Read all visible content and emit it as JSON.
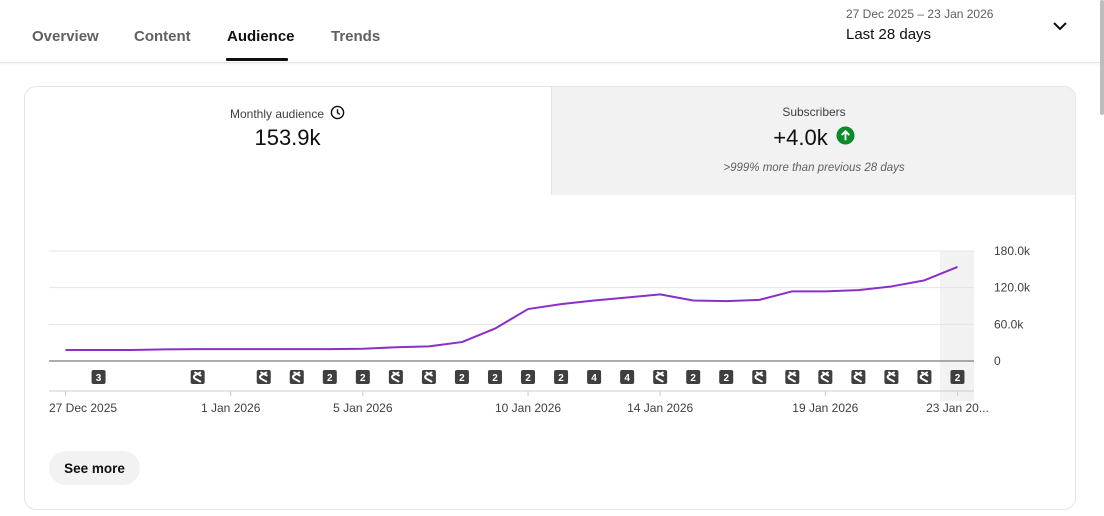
{
  "tabs": [
    {
      "label": "Overview",
      "active": false
    },
    {
      "label": "Content",
      "active": false
    },
    {
      "label": "Audience",
      "active": true
    },
    {
      "label": "Trends",
      "active": false
    }
  ],
  "date_range": {
    "range": "27 Dec 2025 – 23 Jan 2026",
    "period": "Last 28 days",
    "dropdown_icon": "chevron-down-icon"
  },
  "metrics": {
    "monthly_audience": {
      "label": "Monthly audience",
      "value": "153.9k",
      "icon": "clock-icon"
    },
    "subscribers": {
      "label": "Subscribers",
      "value": "+4.0k",
      "icon": "arrow-up-circle-icon",
      "change": ">999% more than previous 28 days",
      "accent": "#0b8a2a"
    }
  },
  "chart_data": {
    "type": "line",
    "x": [
      "27 Dec",
      "28 Dec",
      "29 Dec",
      "30 Dec",
      "31 Dec",
      "1 Jan",
      "2 Jan",
      "3 Jan",
      "4 Jan",
      "5 Jan",
      "6 Jan",
      "7 Jan",
      "8 Jan",
      "9 Jan",
      "10 Jan",
      "11 Jan",
      "12 Jan",
      "13 Jan",
      "14 Jan",
      "15 Jan",
      "16 Jan",
      "17 Jan",
      "18 Jan",
      "19 Jan",
      "20 Jan",
      "21 Jan",
      "22 Jan",
      "23 Jan"
    ],
    "series": [
      {
        "values": [
          18000,
          18000,
          18000,
          19000,
          19500,
          19500,
          19500,
          19500,
          19500,
          20000,
          22500,
          24000,
          31000,
          53000,
          85000,
          93000,
          99000,
          104000,
          109000,
          99000,
          98000,
          100000,
          114000,
          114000,
          116000,
          122000,
          132000,
          154000
        ],
        "color": "#8b2fc9"
      }
    ],
    "ylim": [
      0,
      180000
    ],
    "y_ticks": [
      "0",
      "60.0k",
      "120.0k",
      "180.0k"
    ],
    "x_tick_labels": [
      "27 Dec 2025",
      "1 Jan 2026",
      "5 Jan 2026",
      "10 Jan 2026",
      "14 Jan 2026",
      "19 Jan 2026",
      "23 Jan 20..."
    ],
    "x_tick_days": [
      0,
      5,
      9,
      14,
      18,
      23,
      27
    ],
    "grid": true,
    "markers": [
      {
        "day": 1,
        "kind": "count",
        "label": "3"
      },
      {
        "day": 4,
        "kind": "short"
      },
      {
        "day": 6,
        "kind": "short"
      },
      {
        "day": 7,
        "kind": "short"
      },
      {
        "day": 8,
        "kind": "count",
        "label": "2"
      },
      {
        "day": 9,
        "kind": "count",
        "label": "2"
      },
      {
        "day": 10,
        "kind": "short"
      },
      {
        "day": 11,
        "kind": "short"
      },
      {
        "day": 12,
        "kind": "count",
        "label": "2"
      },
      {
        "day": 13,
        "kind": "count",
        "label": "2"
      },
      {
        "day": 14,
        "kind": "count",
        "label": "2"
      },
      {
        "day": 15,
        "kind": "count",
        "label": "2"
      },
      {
        "day": 16,
        "kind": "count",
        "label": "4"
      },
      {
        "day": 17,
        "kind": "count",
        "label": "4"
      },
      {
        "day": 18,
        "kind": "short"
      },
      {
        "day": 19,
        "kind": "count",
        "label": "2"
      },
      {
        "day": 20,
        "kind": "count",
        "label": "2"
      },
      {
        "day": 21,
        "kind": "short"
      },
      {
        "day": 22,
        "kind": "short"
      },
      {
        "day": 23,
        "kind": "short"
      },
      {
        "day": 24,
        "kind": "short"
      },
      {
        "day": 25,
        "kind": "short"
      },
      {
        "day": 26,
        "kind": "short"
      },
      {
        "day": 27,
        "kind": "count",
        "label": "2"
      }
    ]
  },
  "see_more_label": "See more"
}
